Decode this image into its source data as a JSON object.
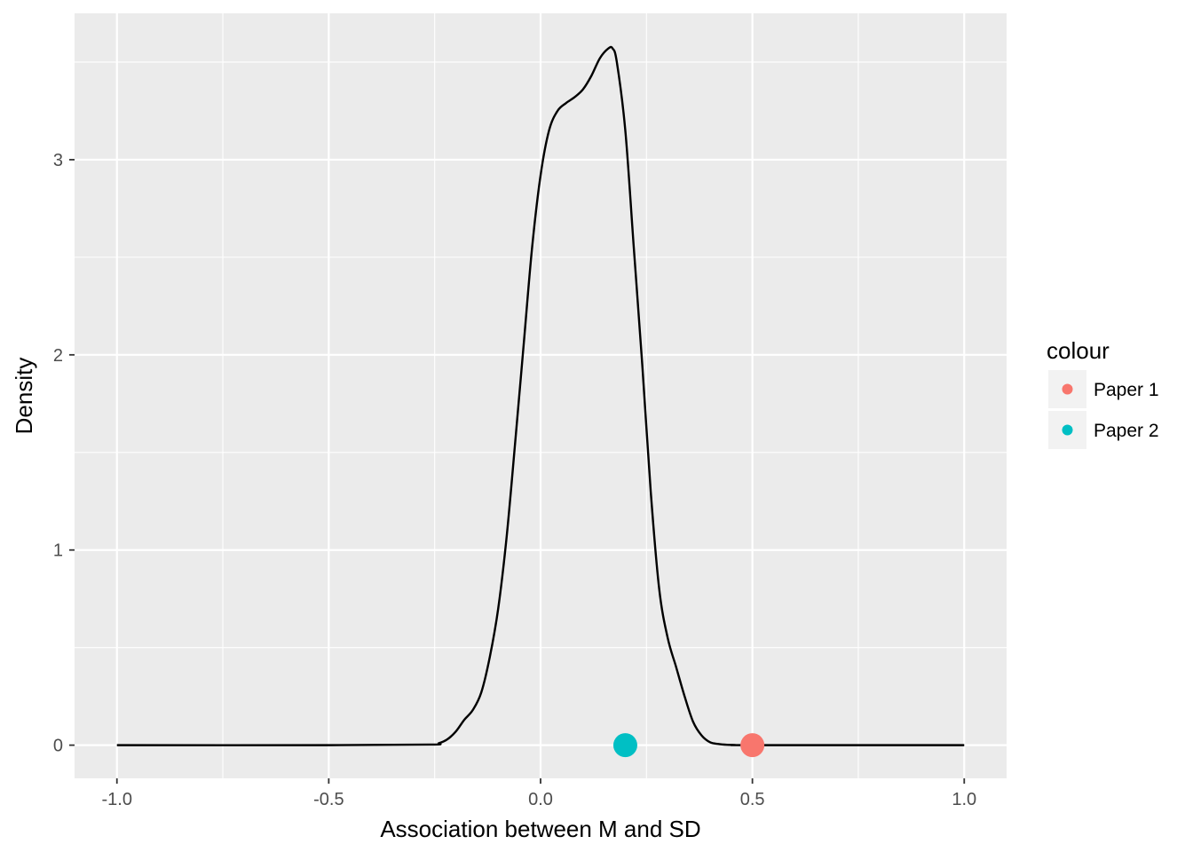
{
  "chart_data": {
    "type": "line",
    "title": "",
    "xlabel": "Association between M and SD",
    "ylabel": "Density",
    "xlim": [
      -1.1,
      1.1
    ],
    "ylim": [
      -0.17,
      3.75
    ],
    "x_ticks": [
      -1.0,
      -0.5,
      0.0,
      0.5,
      1.0
    ],
    "x_tick_labels": [
      "-1.0",
      "-0.5",
      "0.0",
      "0.5",
      "1.0"
    ],
    "y_ticks": [
      0,
      1,
      2,
      3
    ],
    "y_tick_labels": [
      "0",
      "1",
      "2",
      "3"
    ],
    "grid": true,
    "background": "#ebebeb",
    "density_curve": {
      "color": "#000000",
      "x": [
        -1.0,
        -0.5,
        -0.26,
        -0.24,
        -0.22,
        -0.2,
        -0.18,
        -0.16,
        -0.14,
        -0.12,
        -0.1,
        -0.08,
        -0.06,
        -0.04,
        -0.02,
        0.0,
        0.02,
        0.04,
        0.06,
        0.08,
        0.1,
        0.12,
        0.14,
        0.16,
        0.17,
        0.18,
        0.2,
        0.22,
        0.24,
        0.26,
        0.28,
        0.3,
        0.32,
        0.34,
        0.36,
        0.38,
        0.4,
        0.42,
        0.44,
        0.46,
        0.5,
        1.0
      ],
      "y": [
        0,
        0,
        0.003,
        0.01,
        0.03,
        0.07,
        0.13,
        0.18,
        0.27,
        0.45,
        0.7,
        1.07,
        1.55,
        2.05,
        2.55,
        2.92,
        3.15,
        3.25,
        3.29,
        3.32,
        3.36,
        3.43,
        3.52,
        3.57,
        3.57,
        3.5,
        3.15,
        2.55,
        1.95,
        1.3,
        0.8,
        0.55,
        0.4,
        0.25,
        0.12,
        0.05,
        0.015,
        0.006,
        0.002,
        0.001,
        0,
        0
      ]
    },
    "legend": {
      "title": "colour",
      "placement": "right",
      "entries": [
        {
          "label": "Paper 1",
          "color": "#f8766d"
        },
        {
          "label": "Paper 2",
          "color": "#00bfc4"
        }
      ]
    },
    "points": [
      {
        "series": "Paper 1",
        "x": 0.5,
        "y": 0,
        "color": "#f8766d"
      },
      {
        "series": "Paper 2",
        "x": 0.2,
        "y": 0,
        "color": "#00bfc4"
      }
    ]
  }
}
